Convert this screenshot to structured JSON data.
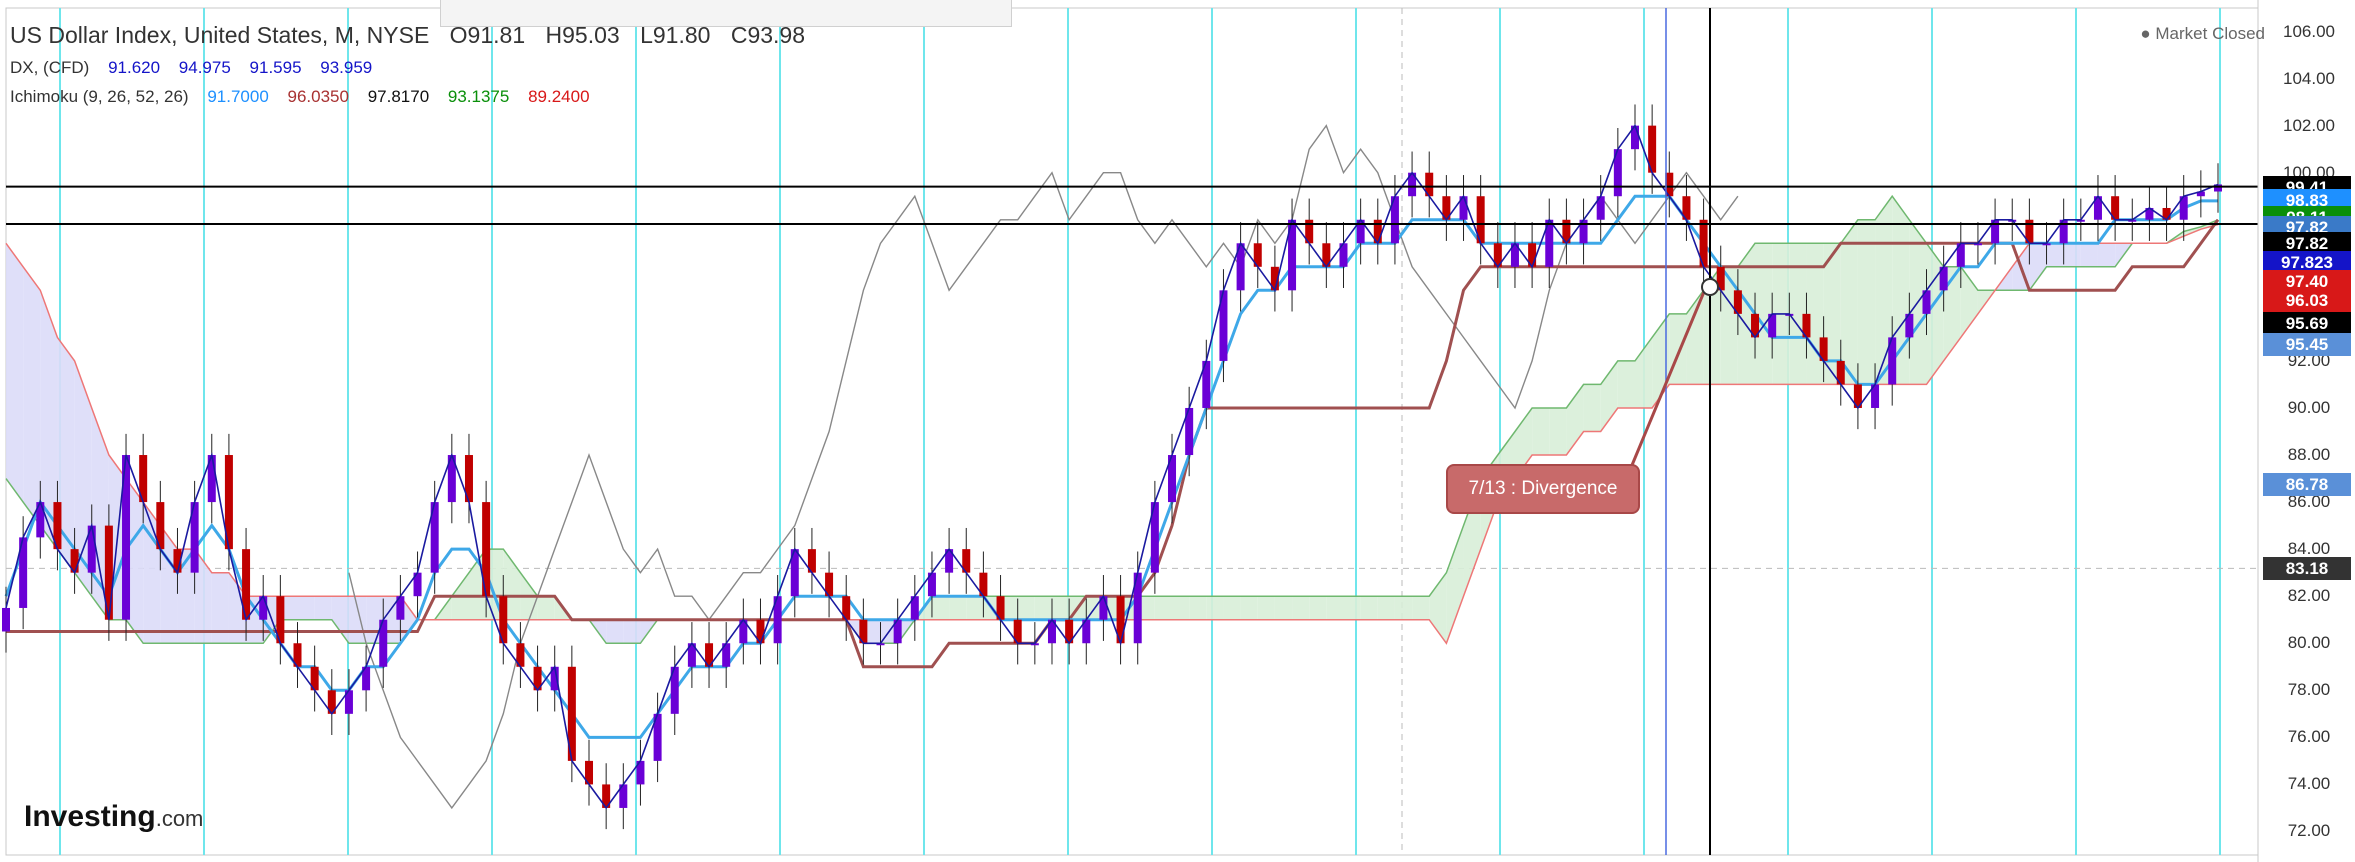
{
  "header": {
    "title": "US Dollar Index, United States, M, NYSE",
    "ohlc": [
      "O91.81",
      "H95.03",
      "L91.80",
      "C93.98"
    ],
    "dx_label": "DX, (CFD)",
    "dx_values": [
      "91.620",
      "94.975",
      "91.595",
      "93.959"
    ],
    "ichimoku_label": "Ichimoku (9, 26, 52, 26)",
    "ichimoku_values": [
      "91.7000",
      "96.0350",
      "97.8170",
      "93.1375",
      "89.2400"
    ]
  },
  "status": {
    "market": "● Market Closed"
  },
  "logo": {
    "brand": "Investing",
    "suffix": ".com"
  },
  "annotation": {
    "label": "7/13 : Divergence"
  },
  "colors": {
    "candle_up": "#6a00d6",
    "candle_down": "#c00000",
    "tenkan": "#3ea8e8",
    "kijun": "#a05050",
    "chikou": "#888888",
    "span_a": "#6fb86f",
    "span_b": "#ee7777",
    "kumo_bull": "#d8eed8",
    "kumo_bear": "#dcdcf8",
    "vertical_guides": "#6fe6ec"
  },
  "chart_data": {
    "type": "line",
    "yrange": [
      71,
      107
    ],
    "y_ticks": [
      72,
      74,
      76,
      78,
      80,
      82,
      84,
      86,
      88,
      90,
      92,
      94,
      96,
      98,
      100,
      102,
      104,
      106
    ],
    "horizontal_levels": [
      99.41,
      97.82
    ],
    "price_badges": [
      {
        "value": "99.41",
        "y": 99.41,
        "color": "#000000"
      },
      {
        "value": "98.83",
        "y": 98.83,
        "color": "#1e90ff"
      },
      {
        "value": "98.11",
        "y": 98.11,
        "color": "#0a8f0a"
      },
      {
        "value": "97.82",
        "y": 97.7,
        "color": "#3a7ac8"
      },
      {
        "value": "97.82",
        "y": 97.0,
        "color": "#000000"
      },
      {
        "value": "97.823",
        "y": 96.2,
        "color": "#1414c8"
      },
      {
        "value": "97.40",
        "y": 95.4,
        "color": "#d81818"
      },
      {
        "value": "96.03",
        "y": 94.6,
        "color": "#d81818"
      },
      {
        "value": "95.69",
        "y": 93.6,
        "color": "#000000"
      },
      {
        "value": "95.45",
        "y": 92.7,
        "color": "#5a90d8"
      },
      {
        "value": "86.78",
        "y": 86.78,
        "color": "#5a90d8"
      },
      {
        "value": "83.18",
        "y": 83.18,
        "color": "#333333"
      }
    ],
    "price": [
      81.5,
      84.5,
      86,
      84,
      83,
      85,
      81,
      88,
      86,
      84,
      83,
      86,
      88,
      84,
      81,
      82,
      80,
      79,
      78,
      77,
      78,
      79,
      81,
      82,
      83,
      86,
      88,
      86,
      82,
      80,
      79,
      78,
      79,
      75,
      74,
      73,
      74,
      75,
      77,
      79,
      80,
      79,
      80,
      81,
      80,
      82,
      84,
      83,
      82,
      81,
      80,
      80,
      81,
      82,
      83,
      84,
      83,
      82,
      81,
      80,
      80,
      81,
      80,
      81,
      82,
      80,
      83,
      86,
      88,
      90,
      92,
      95,
      97,
      96,
      95,
      98,
      97,
      96,
      97,
      98,
      97,
      99,
      100,
      99,
      98,
      99,
      97,
      96,
      97,
      96,
      98,
      97,
      98,
      99,
      101,
      102,
      100,
      99,
      98,
      96,
      95,
      94,
      93,
      94,
      94,
      93,
      92,
      91,
      90,
      91,
      93,
      94,
      95,
      96,
      97,
      97,
      98,
      98,
      97,
      97,
      98,
      98,
      99,
      98,
      98,
      98.5,
      98,
      99,
      99.2,
      99.5
    ],
    "tenkan": [
      82,
      84,
      86,
      85,
      84,
      83,
      82,
      84,
      85,
      84,
      83,
      84,
      85,
      84,
      82,
      81,
      80,
      79,
      79,
      78,
      78,
      79,
      79,
      80,
      81,
      83,
      84,
      84,
      83,
      81,
      80,
      79,
      78,
      77,
      76,
      76,
      76,
      76,
      77,
      78,
      79,
      79,
      79,
      80,
      80,
      81,
      82,
      82,
      82,
      82,
      81,
      81,
      81,
      81,
      82,
      82,
      82,
      82,
      81,
      81,
      81,
      81,
      81,
      81,
      81,
      81,
      82,
      84,
      86,
      88,
      90,
      92,
      94,
      95,
      95,
      96,
      96,
      96,
      96,
      97,
      97,
      97,
      98,
      98,
      98,
      98,
      97,
      97,
      97,
      97,
      97,
      97,
      97,
      97,
      98,
      99,
      99,
      99,
      98,
      97,
      96,
      95,
      94,
      93,
      93,
      93,
      92,
      92,
      91,
      91,
      92,
      93,
      94,
      95,
      96,
      96,
      97,
      97,
      97,
      97,
      97,
      97,
      97,
      98,
      98,
      98,
      98,
      98.5,
      98.8,
      98.8
    ],
    "kijun": [
      80.5,
      80.5,
      80.5,
      80.5,
      80.5,
      80.5,
      80.5,
      80.5,
      80.5,
      80.5,
      80.5,
      80.5,
      80.5,
      80.5,
      80.5,
      80.5,
      80.5,
      80.5,
      80.5,
      80.5,
      80.5,
      80.5,
      80.5,
      80.5,
      80.5,
      82,
      82,
      82,
      82,
      82,
      82,
      82,
      82,
      81,
      81,
      81,
      81,
      81,
      81,
      81,
      81,
      81,
      81,
      81,
      81,
      81,
      81,
      81,
      81,
      81,
      79,
      79,
      79,
      79,
      79,
      80,
      80,
      80,
      80,
      80,
      80,
      81,
      81,
      82,
      82,
      82,
      82,
      83,
      85,
      88,
      90,
      90,
      90,
      90,
      90,
      90,
      90,
      90,
      90,
      90,
      90,
      90,
      90,
      90,
      92,
      95,
      96,
      96,
      96,
      96,
      96,
      96,
      96,
      96,
      96,
      96,
      96,
      96,
      96,
      96,
      96,
      96,
      96,
      96,
      96,
      96,
      96,
      97,
      97,
      97,
      97,
      97,
      97,
      97,
      97,
      97,
      97,
      97,
      95,
      95,
      95,
      95,
      95,
      95,
      96,
      96,
      96,
      96,
      97,
      98
    ],
    "chikou": [
      83,
      80,
      78,
      76,
      75,
      74,
      73,
      74,
      75,
      77,
      80,
      82,
      84,
      86,
      88,
      86,
      84,
      83,
      84,
      82,
      82,
      81,
      82,
      83,
      83,
      84,
      85,
      87,
      89,
      92,
      95,
      97,
      98,
      99,
      97,
      95,
      96,
      97,
      98,
      98,
      99,
      100,
      98,
      99,
      100,
      100,
      98,
      97,
      98,
      97,
      96,
      97,
      96,
      98,
      97,
      98,
      101,
      102,
      100,
      101,
      100,
      98,
      96,
      95,
      94,
      93,
      92,
      91,
      90,
      92,
      95,
      97,
      98,
      99,
      98,
      97,
      98,
      99,
      100,
      99,
      98,
      99
    ],
    "span_a": [
      87,
      86,
      85,
      84,
      83,
      82,
      81,
      81,
      80,
      80,
      80,
      80,
      80,
      80,
      80,
      80,
      81,
      81,
      81,
      81,
      80,
      80,
      80,
      80,
      81,
      81,
      82,
      83,
      84,
      84,
      83,
      82,
      82,
      81,
      81,
      80,
      80,
      80,
      81,
      81,
      81,
      81,
      81,
      81,
      81,
      81,
      81,
      81,
      81,
      81,
      80,
      80,
      80,
      81,
      82,
      82,
      82,
      82,
      82,
      82,
      82,
      82,
      82,
      82,
      82,
      82,
      82,
      82,
      82,
      82,
      82,
      82,
      82,
      82,
      82,
      82,
      82,
      82,
      82,
      82,
      82,
      82,
      82,
      82,
      83,
      85,
      87,
      88,
      89,
      90,
      90,
      90,
      91,
      91,
      92,
      92,
      93,
      94,
      94,
      95,
      96,
      96,
      97,
      97,
      97,
      97,
      97,
      97,
      98,
      98,
      99,
      98,
      97,
      96,
      96,
      95,
      95,
      95,
      95,
      96,
      96,
      96,
      96,
      96,
      97,
      97,
      97,
      97.5,
      97.7,
      98
    ],
    "span_b": [
      97,
      96,
      95,
      93,
      92,
      90,
      88,
      87,
      86,
      85,
      84,
      84,
      83,
      83,
      82,
      82,
      82,
      82,
      82,
      82,
      82,
      82,
      82,
      82,
      81,
      81,
      81,
      81,
      81,
      81,
      81,
      81,
      81,
      81,
      81,
      81,
      81,
      81,
      81,
      81,
      81,
      81,
      81,
      81,
      81,
      81,
      81,
      81,
      81,
      81,
      81,
      81,
      81,
      81,
      81,
      81,
      81,
      81,
      81,
      81,
      81,
      81,
      81,
      81,
      81,
      81,
      81,
      81,
      81,
      81,
      81,
      81,
      81,
      81,
      81,
      81,
      81,
      81,
      81,
      81,
      81,
      81,
      81,
      81,
      80,
      82,
      84,
      86,
      87,
      88,
      88,
      88,
      89,
      89,
      90,
      90,
      90,
      91,
      91,
      91,
      91,
      91,
      91,
      91,
      91,
      91,
      91,
      91,
      91,
      91,
      91,
      91,
      91,
      92,
      93,
      94,
      95,
      96,
      97,
      97,
      97,
      97,
      97,
      97,
      97,
      97,
      97,
      97.3,
      97.6,
      97.8
    ]
  }
}
